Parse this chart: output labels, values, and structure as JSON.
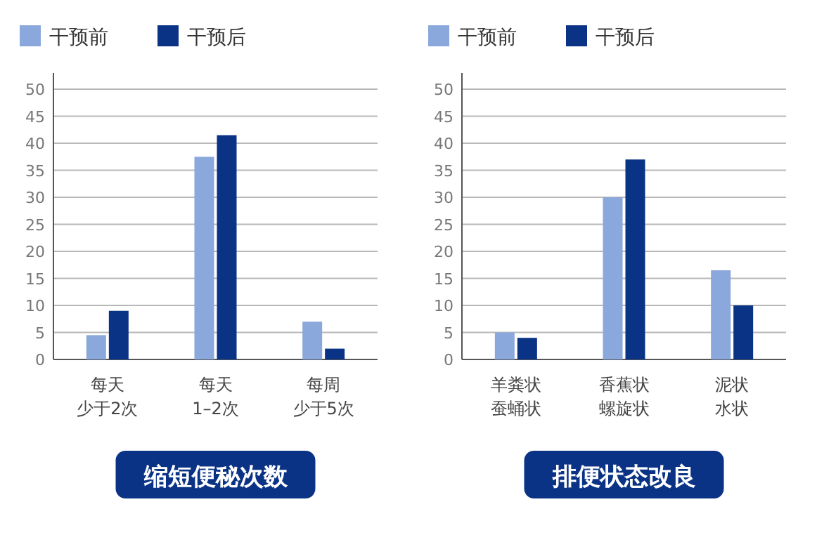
{
  "chart_data": [
    {
      "type": "bar",
      "title": "缩短便秘次数",
      "categories": [
        "每天少于2次",
        "每天1–2次",
        "每周少于5次"
      ],
      "series": [
        {
          "name": "干预前",
          "color": "#8aa8dc",
          "values": [
            4.5,
            37.5,
            7
          ]
        },
        {
          "name": "干预后",
          "color": "#0a3385",
          "values": [
            9,
            41.5,
            2
          ]
        }
      ],
      "ylim": [
        0,
        53
      ],
      "yticks": [
        0,
        5,
        10,
        15,
        20,
        25,
        30,
        35,
        40,
        45,
        50
      ],
      "grid": "y",
      "legend": "top left"
    },
    {
      "type": "bar",
      "title": "排便状态改良",
      "categories": [
        "羊粪状蚕蛹状",
        "香蕉状螺旋状",
        "泥状水状"
      ],
      "series": [
        {
          "name": "干预前",
          "color": "#8aa8dc",
          "values": [
            5,
            30,
            16.5
          ]
        },
        {
          "name": "干预后",
          "color": "#0a3385",
          "values": [
            4,
            37,
            10
          ]
        }
      ],
      "ylim": [
        0,
        53
      ],
      "yticks": [
        0,
        5,
        10,
        15,
        20,
        25,
        30,
        35,
        40,
        45,
        50
      ],
      "grid": "y",
      "legend": "top left"
    }
  ]
}
